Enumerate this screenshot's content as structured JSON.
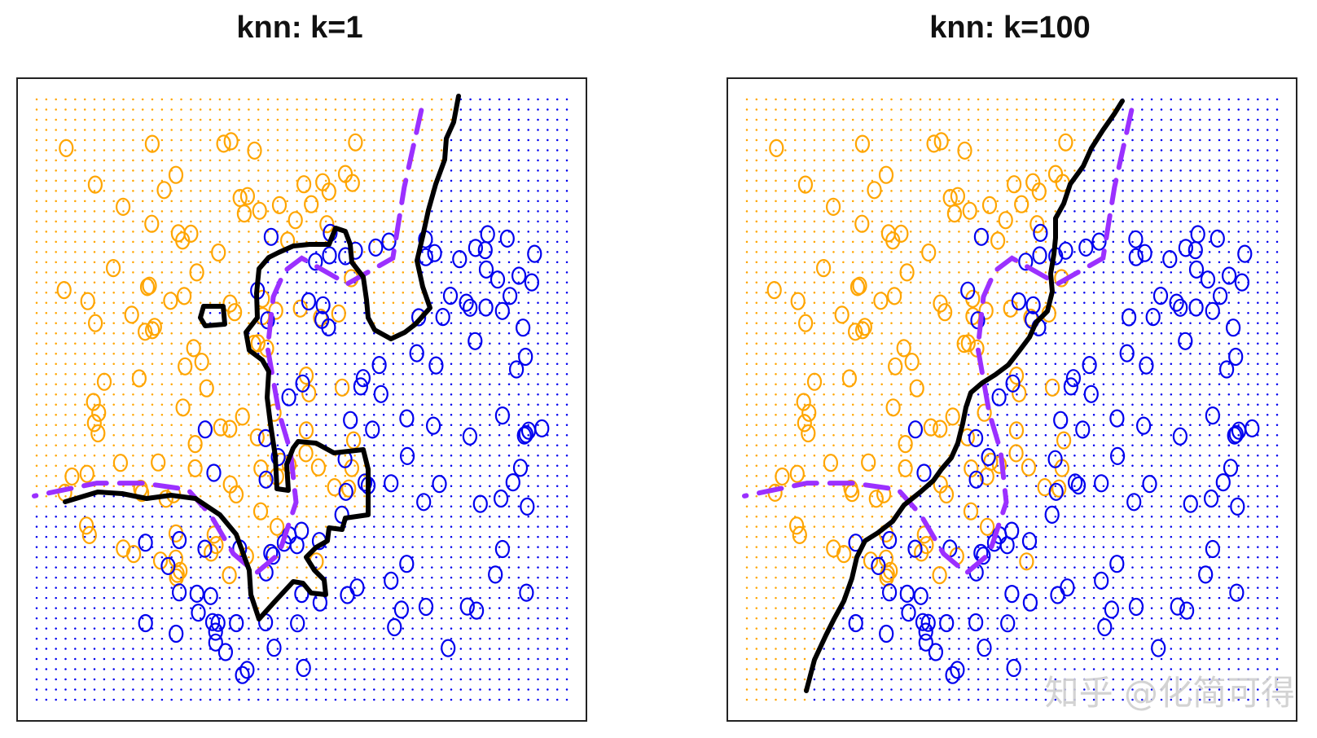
{
  "chart_data": [
    {
      "type": "scatter",
      "title": "knn: k=1",
      "classes": [
        {
          "color": "#ffa500"
        },
        {
          "color": "#0000ee"
        }
      ],
      "boundary_style": {
        "knn": "solid black",
        "bayes": "dashed purple",
        "bayes_color": "#9b30ff"
      }
    },
    {
      "type": "scatter",
      "title": "knn: k=100",
      "classes": [
        {
          "color": "#ffa500"
        },
        {
          "color": "#0000ee"
        }
      ],
      "boundary_style": {
        "knn": "solid black",
        "bayes": "dashed purple",
        "bayes_color": "#9b30ff"
      }
    }
  ],
  "watermark": "知乎 @化简可得"
}
